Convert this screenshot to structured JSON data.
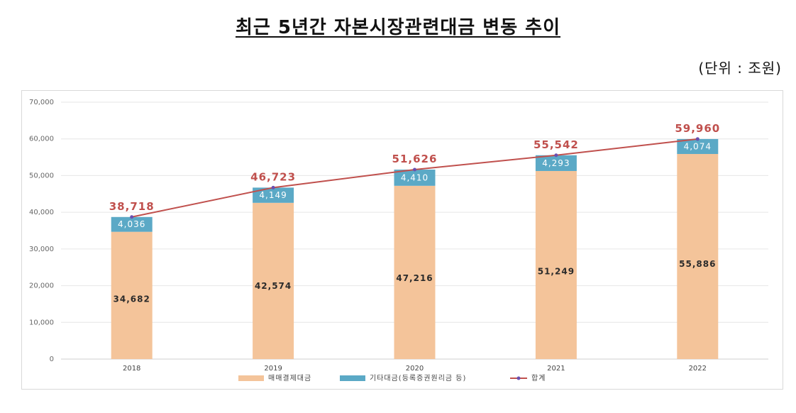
{
  "title": "최근 5년간 자본시장관련대금 변동 추이",
  "unit_note": "(단위 : 조원)",
  "colors": {
    "settlement": "#f4c49a",
    "other": "#5ba9c6",
    "total": "#c0504d"
  },
  "chart_data": {
    "type": "bar",
    "stacked": true,
    "categories": [
      "2018",
      "2019",
      "2020",
      "2021",
      "2022"
    ],
    "series": [
      {
        "name": "매매결제대금",
        "type": "bar",
        "values": [
          34682,
          42574,
          47216,
          51249,
          55886
        ]
      },
      {
        "name": "기타대금(등록증권원리금 등)",
        "type": "bar",
        "values": [
          4036,
          4149,
          4410,
          4293,
          4074
        ]
      },
      {
        "name": "합계",
        "type": "line",
        "values": [
          38718,
          46723,
          51626,
          55542,
          59960
        ]
      }
    ],
    "ylim": [
      0,
      70000
    ],
    "yticks": [
      "0",
      "10,000",
      "20,000",
      "30,000",
      "40,000",
      "50,000",
      "60,000",
      "70,000"
    ],
    "data_labels": {
      "settlement": [
        "34,682",
        "42,574",
        "47,216",
        "51,249",
        "55,886"
      ],
      "other": [
        "4,036",
        "4,149",
        "4,410",
        "4,293",
        "4,074"
      ],
      "total": [
        "38,718",
        "46,723",
        "51,626",
        "55,542",
        "59,960"
      ]
    },
    "grid": true,
    "legend_position": "bottom"
  }
}
